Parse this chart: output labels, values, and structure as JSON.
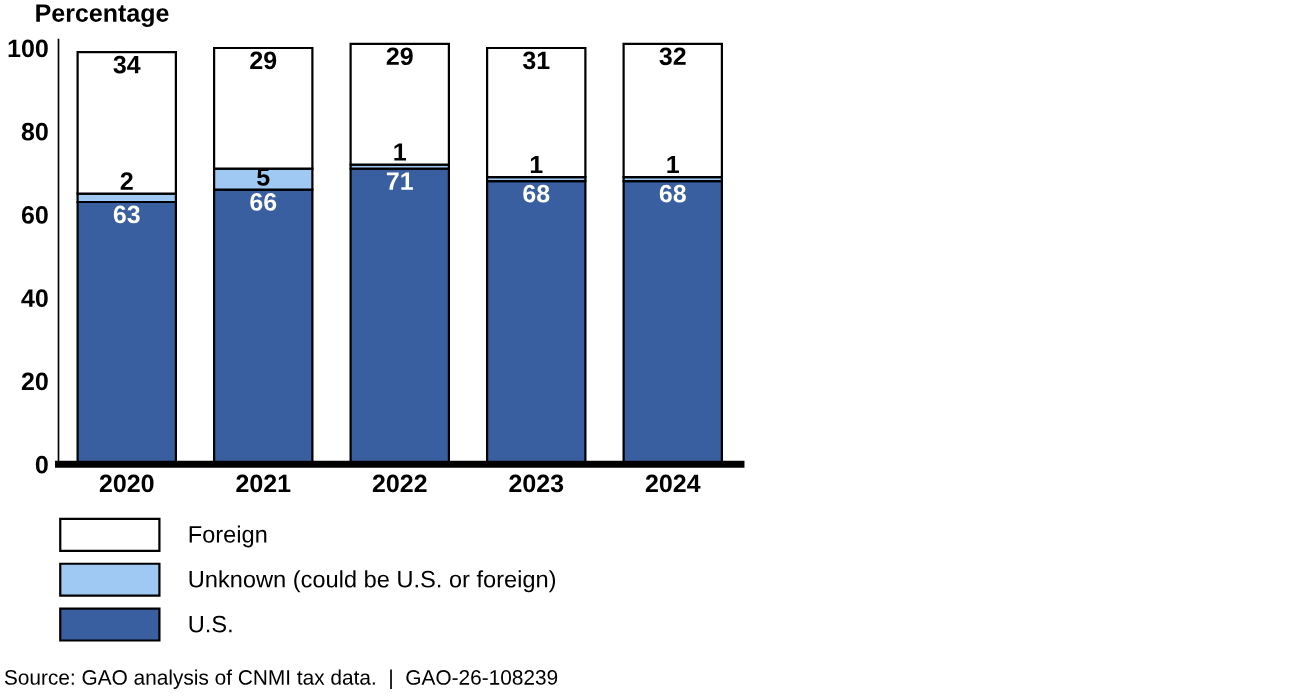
{
  "chart_data": {
    "type": "bar",
    "stacked": true,
    "ylabel": "Percentage",
    "categories": [
      "2020",
      "2021",
      "2022",
      "2023",
      "2024"
    ],
    "series": [
      {
        "name": "U.S.",
        "color": "#3a5fa0",
        "values": [
          63,
          66,
          71,
          68,
          68
        ]
      },
      {
        "name": "Unknown (could be U.S. or foreign)",
        "color": "#9fc8f2",
        "values": [
          2,
          5,
          1,
          1,
          1
        ]
      },
      {
        "name": "Foreign",
        "color": "#ffffff",
        "values": [
          34,
          29,
          29,
          31,
          32
        ]
      }
    ],
    "ylim": [
      0,
      102
    ],
    "yticks": [
      0,
      20,
      40,
      60,
      80,
      100
    ],
    "grid": false,
    "legend": "bottom",
    "data_labels": true,
    "annotations": [
      "Source: GAO analysis of CNMI tax data.  |  GAO-26-108239"
    ]
  }
}
